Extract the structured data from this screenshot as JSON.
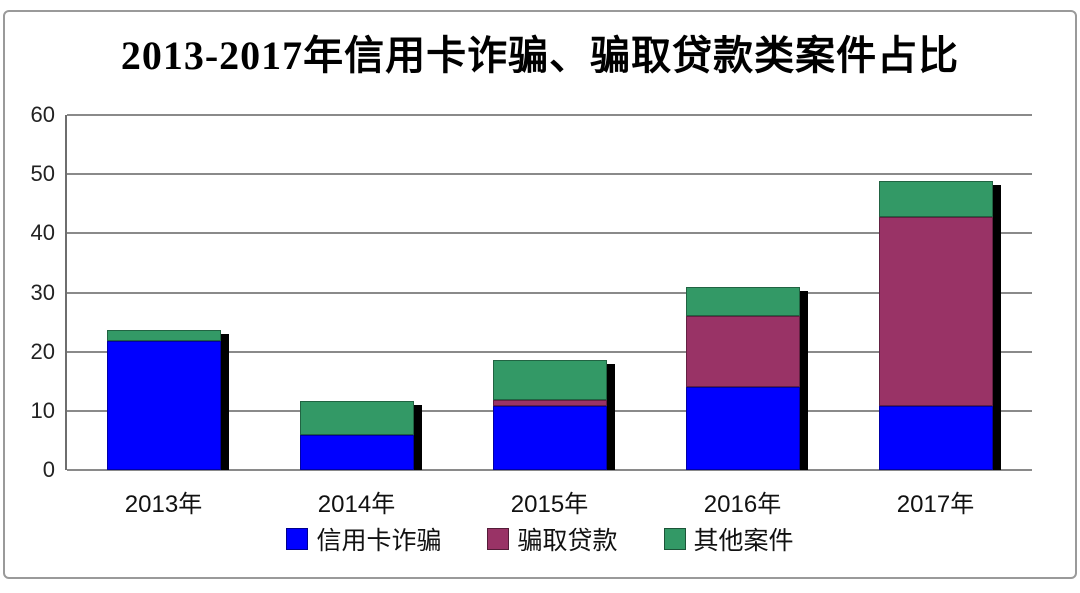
{
  "chart_data": {
    "type": "bar",
    "stacked": true,
    "title": "2013-2017年信用卡诈骗、骗取贷款类案件占比",
    "categories": [
      "2013年",
      "2014年",
      "2015年",
      "2016年",
      "2017年"
    ],
    "series": [
      {
        "name": "信用卡诈骗",
        "color": "#0000ff",
        "values": [
          21.8,
          5.9,
          10.8,
          14.0,
          10.8
        ]
      },
      {
        "name": "骗取贷款",
        "color": "#993366",
        "values": [
          0,
          0,
          1.1,
          12.0,
          31.9
        ]
      },
      {
        "name": "其他案件",
        "color": "#339966",
        "values": [
          1.9,
          5.8,
          6.7,
          5.0,
          6.2
        ]
      }
    ],
    "stack_totals": [
      23.7,
      11.7,
      18.6,
      31.0,
      48.9
    ],
    "xlabel": "",
    "ylabel": "",
    "ylim": [
      0,
      60
    ],
    "yticks": [
      0,
      10,
      20,
      30,
      40,
      50,
      60
    ],
    "grid": "horizontal",
    "legend_position": "bottom",
    "colors": {
      "bar_shadow": "#000000",
      "gridline": "#8a8a8a",
      "axis": "#6e6e6e",
      "outer_border": "#9a9a9a",
      "background": "#ffffff",
      "text": "#111111"
    }
  }
}
